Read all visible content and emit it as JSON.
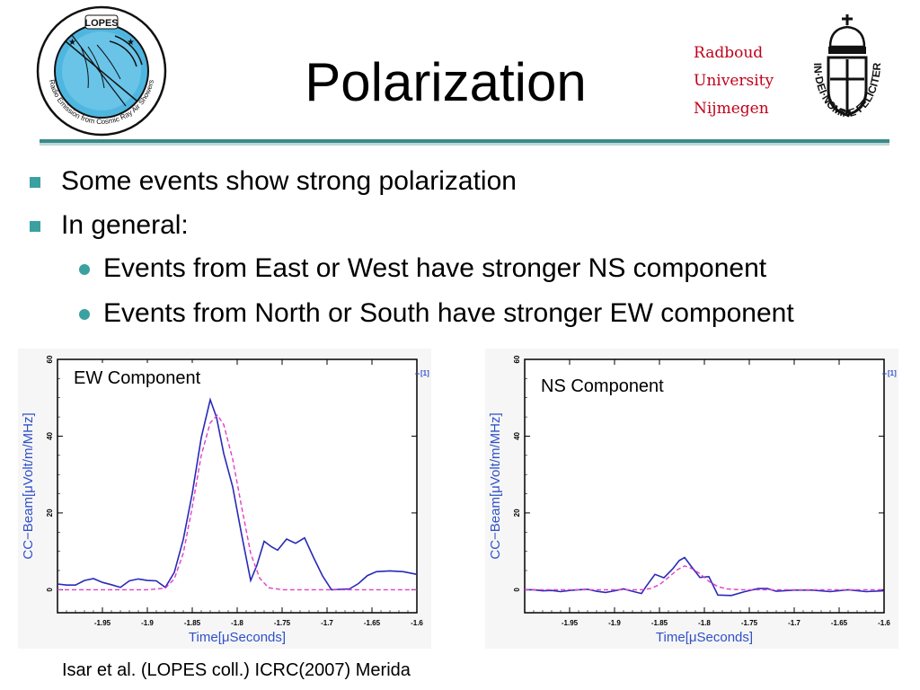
{
  "slide": {
    "title": "Polarization",
    "university": [
      "Radboud",
      "University",
      "Nijmegen"
    ],
    "bullets": [
      {
        "level": 1,
        "text": "Some events show strong polarization"
      },
      {
        "level": 1,
        "text": "In general:"
      },
      {
        "level": 2,
        "text": "Events from East or West have stronger NS component"
      },
      {
        "level": 2,
        "text": "Events from North or South have stronger EW component"
      }
    ],
    "citation": "Isar et al. (LOPES coll.) ICRC(2007) Merida",
    "logos": {
      "lopes_ring_text": "LOPES",
      "lopes_arc_text": "Radio Emission from Cosmic Ray Air Showers",
      "radboud_motto": "IN·DEI·NOMINE·FELICITER"
    }
  },
  "colors": {
    "accent": "#3aa0a0",
    "university_red": "#c0001a",
    "data_line": "#2929b8",
    "fit_line": "#e040c8",
    "axis_label": "#3050c8"
  },
  "chart_data": [
    {
      "type": "line",
      "annotation": "EW Component",
      "xlabel": "Time[μSeconds]",
      "ylabel": "CC−Beam[μVolt/m/MHz]",
      "xlim": [
        -2.0,
        -1.6
      ],
      "ylim": [
        -6,
        60
      ],
      "x_ticks": [
        "-1.95",
        "-1.9",
        "-1.85",
        "-1.8",
        "-1.75",
        "-1.7",
        "-1.65",
        "-1.6"
      ],
      "y_ticks": [
        "0",
        "20",
        "40",
        "60"
      ],
      "legend_tag": "[1]",
      "grid": false,
      "series": [
        {
          "style": "solid",
          "color": "#2929b8",
          "x": [
            -2.0,
            -1.99,
            -1.98,
            -1.97,
            -1.96,
            -1.95,
            -1.94,
            -1.93,
            -1.92,
            -1.91,
            -1.9,
            -1.89,
            -1.88,
            -1.87,
            -1.86,
            -1.85,
            -1.84,
            -1.83,
            -1.823,
            -1.815,
            -1.805,
            -1.795,
            -1.785,
            -1.778,
            -1.77,
            -1.762,
            -1.755,
            -1.745,
            -1.735,
            -1.725,
            -1.715,
            -1.705,
            -1.695,
            -1.685,
            -1.675,
            -1.665,
            -1.655,
            -1.645,
            -1.63,
            -1.615,
            -1.6
          ],
          "y": [
            1.5,
            1.2,
            1.2,
            2.4,
            2.9,
            1.9,
            1.3,
            0.6,
            2.3,
            2.8,
            2.4,
            2.3,
            0.6,
            4.5,
            13.1,
            25.1,
            39.6,
            49.5,
            44.9,
            35.5,
            26.8,
            14.3,
            2.4,
            6.4,
            12.6,
            11.2,
            10.3,
            13.2,
            12.1,
            13.5,
            8.4,
            3.6,
            0.0,
            0.1,
            0.2,
            1.6,
            3.7,
            4.7,
            4.9,
            4.7,
            4.0
          ]
        },
        {
          "style": "dashed",
          "color": "#e040c8",
          "x": [
            -2.0,
            -1.9,
            -1.88,
            -1.87,
            -1.86,
            -1.85,
            -1.84,
            -1.83,
            -1.822,
            -1.815,
            -1.805,
            -1.795,
            -1.785,
            -1.775,
            -1.765,
            -1.75,
            -1.7,
            -1.6
          ],
          "y": [
            0,
            0,
            0.4,
            2.8,
            9.5,
            21.5,
            35,
            43.5,
            45.5,
            43,
            34,
            21.5,
            9.5,
            3,
            0.5,
            0,
            0,
            0
          ]
        }
      ]
    },
    {
      "type": "line",
      "annotation": "NS Component",
      "xlabel": "Time[μSeconds]",
      "ylabel": "CC−Beam[μVolt/m/MHz]",
      "xlim": [
        -2.0,
        -1.6
      ],
      "ylim": [
        -6,
        60
      ],
      "x_ticks": [
        "-1.95",
        "-1.9",
        "-1.85",
        "-1.8",
        "-1.75",
        "-1.7",
        "-1.65",
        "-1.6"
      ],
      "y_ticks": [
        "0",
        "20",
        "40",
        "60"
      ],
      "legend_tag": "[1]",
      "grid": false,
      "series": [
        {
          "style": "solid",
          "color": "#2929b8",
          "x": [
            -2.0,
            -1.99,
            -1.98,
            -1.97,
            -1.96,
            -1.95,
            -1.94,
            -1.93,
            -1.92,
            -1.91,
            -1.9,
            -1.89,
            -1.88,
            -1.87,
            -1.865,
            -1.855,
            -1.845,
            -1.835,
            -1.828,
            -1.822,
            -1.815,
            -1.805,
            -1.795,
            -1.785,
            -1.77,
            -1.755,
            -1.74,
            -1.73,
            -1.72,
            -1.7,
            -1.68,
            -1.66,
            -1.64,
            -1.62,
            -1.6
          ],
          "y": [
            0,
            0,
            -0.3,
            -0.2,
            -0.5,
            -0.2,
            0,
            0.1,
            -0.4,
            -0.7,
            -0.3,
            0.2,
            -0.4,
            -1.0,
            0.8,
            4.0,
            3.1,
            5.5,
            7.6,
            8.4,
            6.2,
            3.2,
            3.4,
            -1.4,
            -1.5,
            -0.5,
            0.3,
            0.3,
            -0.4,
            -0.1,
            -0.1,
            -0.5,
            0.0,
            -0.5,
            -0.3
          ]
        },
        {
          "style": "dashed",
          "color": "#e040c8",
          "x": [
            -2.0,
            -1.87,
            -1.86,
            -1.85,
            -1.84,
            -1.83,
            -1.822,
            -1.815,
            -1.805,
            -1.795,
            -1.785,
            -1.775,
            -1.76,
            -1.6
          ],
          "y": [
            0,
            0,
            0.3,
            1.3,
            3.2,
            5.2,
            6.2,
            5.6,
            4.2,
            2.2,
            0.8,
            0.2,
            0,
            0
          ]
        }
      ]
    }
  ]
}
